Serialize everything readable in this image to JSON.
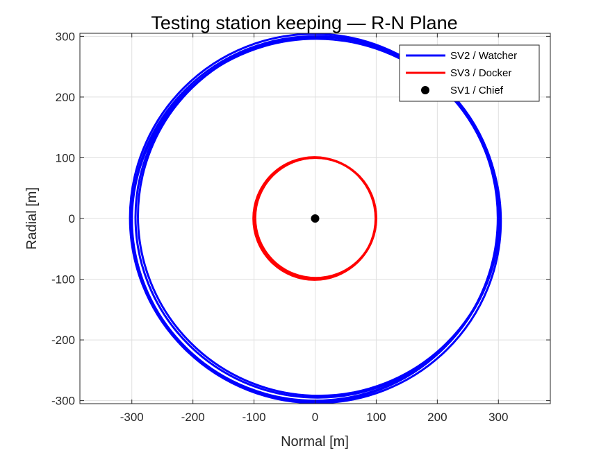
{
  "chart_data": {
    "type": "scatter",
    "title": "Testing station keeping — R-N Plane",
    "xlabel": "Normal [m]",
    "ylabel": "Radial [m]",
    "xlim": [
      -385,
      385
    ],
    "ylim": [
      -305,
      305
    ],
    "xticks": [
      -300,
      -200,
      -100,
      0,
      100,
      200,
      300
    ],
    "yticks": [
      -300,
      -200,
      -100,
      0,
      100,
      200,
      300
    ],
    "grid": true,
    "legend_position": "top-right",
    "series": [
      {
        "name": "SV2 / Watcher",
        "mark": "line",
        "color": "#0000ff",
        "loops": [
          {
            "cx": 0,
            "cy": 0,
            "rx": 300,
            "ry": 300
          },
          {
            "cx": 4,
            "cy": 2,
            "rx": 298,
            "ry": 297
          },
          {
            "cx": 2,
            "cy": -4,
            "rx": 302,
            "ry": 300
          },
          {
            "cx": 6,
            "cy": 4,
            "rx": 296,
            "ry": 296
          },
          {
            "cx": -2,
            "cy": 1,
            "rx": 301,
            "ry": 303
          }
        ]
      },
      {
        "name": "SV3 / Docker",
        "mark": "line",
        "color": "#ff0000",
        "loops": [
          {
            "cx": 0,
            "cy": 0,
            "rx": 100,
            "ry": 100
          },
          {
            "cx": 1,
            "cy": 1,
            "rx": 99,
            "ry": 99
          },
          {
            "cx": -1,
            "cy": 0,
            "rx": 100,
            "ry": 101
          }
        ]
      },
      {
        "name": "SV1 / Chief",
        "mark": "point",
        "color": "#000000",
        "x": [
          0
        ],
        "y": [
          0
        ]
      }
    ]
  }
}
